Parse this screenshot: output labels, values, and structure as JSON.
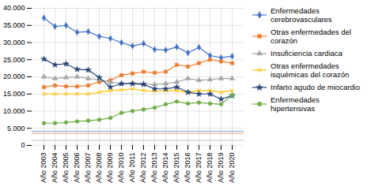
{
  "chart_data": {
    "type": "line",
    "categories": [
      "Año 2003",
      "Año 2004",
      "Año 2005",
      "Año 2006",
      "Año 2007",
      "Año 2008",
      "Año 2009",
      "Año 2010",
      "Año 2011",
      "Año 2012",
      "Año 2013",
      "Año 2014",
      "Año 2015",
      "Año 2016",
      "Año 2017",
      "Año 2018",
      "Año 2019",
      "Año 2020"
    ],
    "series": [
      {
        "name": "Enfermedades\ncerebrovasculares",
        "color": "#4472C4",
        "marker": "diamond",
        "values": [
          37200,
          34700,
          35000,
          33000,
          33200,
          31800,
          31200,
          30000,
          29000,
          29700,
          28000,
          27800,
          28700,
          27000,
          28600,
          26200,
          25600,
          26000
        ]
      },
      {
        "name": "Otras enfermedades del\ncorazón",
        "color": "#ED7D31",
        "marker": "square",
        "values": [
          17000,
          17500,
          17200,
          17200,
          17500,
          18500,
          19000,
          20500,
          21000,
          21500,
          21200,
          21500,
          23500,
          23000,
          24000,
          25000,
          24500,
          24000
        ]
      },
      {
        "name": "Insuficiencia cardiaca",
        "color": "#A5A5A5",
        "marker": "triangle",
        "values": [
          20000,
          19500,
          19800,
          20000,
          19500,
          19200,
          18500,
          18000,
          18200,
          18000,
          17800,
          18000,
          18500,
          19500,
          19000,
          19200,
          19500,
          19500
        ]
      },
      {
        "name": "Otras enfermedades\nisquémicas del corazón",
        "color": "#FFC000",
        "marker": "x",
        "values": [
          15000,
          15000,
          15000,
          15000,
          15000,
          15500,
          16000,
          16200,
          16500,
          16000,
          15800,
          16000,
          16000,
          15500,
          16000,
          16000,
          15500,
          16000
        ]
      },
      {
        "name": "Infarto agudo de miocardio",
        "color": "#264478",
        "marker": "star",
        "values": [
          25200,
          23500,
          23800,
          22200,
          22000,
          19800,
          17000,
          18000,
          18000,
          17800,
          16500,
          16500,
          17000,
          15500,
          15000,
          15000,
          13500,
          14500
        ]
      },
      {
        "name": "Enfermedades\nhipertensivas",
        "color": "#70AD47",
        "marker": "circle",
        "values": [
          6500,
          6500,
          6700,
          7000,
          7200,
          7500,
          8000,
          9500,
          10000,
          10500,
          11000,
          12000,
          12800,
          12200,
          12500,
          12200,
          12000,
          14700
        ]
      }
    ],
    "flat_lines": [
      {
        "value": 4100,
        "color": "#4472C4"
      },
      {
        "value": 3500,
        "color": "#ED7D31"
      },
      {
        "value": 1500,
        "color": "#A5A5A5"
      }
    ],
    "ylim": [
      0,
      40000
    ],
    "yticks": [
      0,
      {
        "value": 5000,
        "label": "5.000"
      },
      {
        "value": 10000,
        "label": "10.000"
      },
      {
        "value": 15000,
        "label": "15.000"
      },
      {
        "value": 20000,
        "label": "20.000"
      },
      {
        "value": 25000,
        "label": "25.000"
      },
      {
        "value": 30000,
        "label": "30.000"
      },
      {
        "value": 35000,
        "label": "35.000"
      },
      {
        "value": 40000,
        "label": "40.000"
      }
    ],
    "grid": true,
    "legend": "right"
  }
}
